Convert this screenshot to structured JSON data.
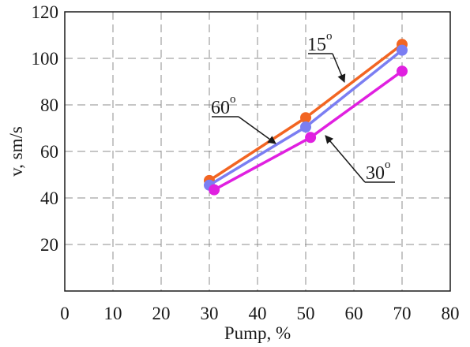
{
  "chart_data": {
    "type": "line",
    "xlabel": "Pump, %",
    "ylabel": "v, sm/s",
    "xlim": [
      0,
      80
    ],
    "ylim": [
      0,
      120
    ],
    "xticks": [
      0,
      10,
      20,
      30,
      40,
      50,
      60,
      70,
      80
    ],
    "yticks": [
      20,
      40,
      60,
      80,
      100,
      120
    ],
    "grid": true,
    "grid_style": "dashed",
    "legend": "none",
    "series": [
      {
        "name": "15o",
        "color": "#f26522",
        "x": [
          30,
          50,
          70
        ],
        "y": [
          47.5,
          74.5,
          106
        ]
      },
      {
        "name": "60o",
        "color": "#7b7ef2",
        "x": [
          30,
          50,
          70
        ],
        "y": [
          45.5,
          70.5,
          103.5
        ]
      },
      {
        "name": "30o",
        "color": "#e020e0",
        "x": [
          31,
          51,
          70
        ],
        "y": [
          43.5,
          66,
          94.5
        ]
      }
    ],
    "annotations": [
      {
        "base": "15",
        "sup": "o"
      },
      {
        "base": "60",
        "sup": "o"
      },
      {
        "base": "30",
        "sup": "o"
      }
    ]
  }
}
